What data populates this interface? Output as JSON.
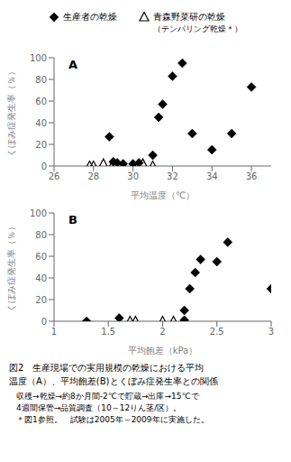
{
  "chart_data": [
    {
      "type": "scatter",
      "title": "A",
      "xlabel": "平均温度（℃）",
      "ylabel": "くぼみ症発生率（％）",
      "xlim": [
        26,
        37
      ],
      "xticks": [
        26,
        28,
        30,
        32,
        34,
        36
      ],
      "ylim": [
        0,
        100
      ],
      "yticks": [
        0,
        20,
        40,
        60,
        80,
        100
      ],
      "grid": false,
      "legend": "top",
      "series": [
        {
          "name": "生産者の乾燥",
          "marker": "diamond",
          "color": "#000000",
          "x": [
            28.8,
            29.0,
            29.2,
            29.5,
            30.0,
            30.3,
            31.0,
            31.3,
            31.5,
            32.0,
            32.5,
            33.0,
            34.0,
            35.0,
            36.0
          ],
          "values": [
            27,
            4,
            3,
            2,
            2,
            3,
            10,
            45,
            57,
            83,
            95,
            30,
            15,
            30,
            73
          ]
        },
        {
          "name": "青森野菜研の乾燥",
          "subtitle": "（テンパリング乾燥＊）",
          "marker": "triangle_open",
          "color": "#000000",
          "x": [
            27.8,
            28.0,
            28.5,
            29.0,
            30.0,
            30.5,
            31.0
          ],
          "values": [
            0,
            0,
            2,
            2,
            0,
            2,
            0
          ]
        }
      ]
    },
    {
      "type": "scatter",
      "title": "B",
      "xlabel": "平均飽差（kPa）",
      "ylabel": "くぼみ症発生率（％）",
      "xlim": [
        1,
        3
      ],
      "xticks": [
        1,
        1.5,
        2,
        2.5,
        3
      ],
      "ylim": [
        0,
        100
      ],
      "yticks": [
        0,
        20,
        40,
        60,
        80,
        100
      ],
      "grid": false,
      "series": [
        {
          "marker": "diamond",
          "color": "#000000",
          "x": [
            1.3,
            1.6,
            2.2,
            2.2,
            2.25,
            2.3,
            2.35,
            2.5,
            2.6,
            3.0
          ],
          "values": [
            0,
            3,
            1,
            10,
            30,
            45,
            57,
            55,
            73,
            30
          ]
        },
        {
          "marker": "triangle_open",
          "color": "#000000",
          "x": [
            1.7,
            1.75,
            2.0,
            2.1
          ],
          "values": [
            0,
            0,
            0,
            0
          ]
        }
      ]
    }
  ],
  "caption": [
    "図2　生産現場での実用規模の乾燥における平均",
    "温度（A）、平均飽差(B)とくぼみ症発生率との関係"
  ],
  "notes": [
    "収穫→乾燥→約8か月間-2℃で貯蔵→出庫→15℃で",
    "4週間保管→品質調査（10～12りん茎/区）。",
    "＊図1参照。　試験は2005年～2009年に実施した。"
  ]
}
